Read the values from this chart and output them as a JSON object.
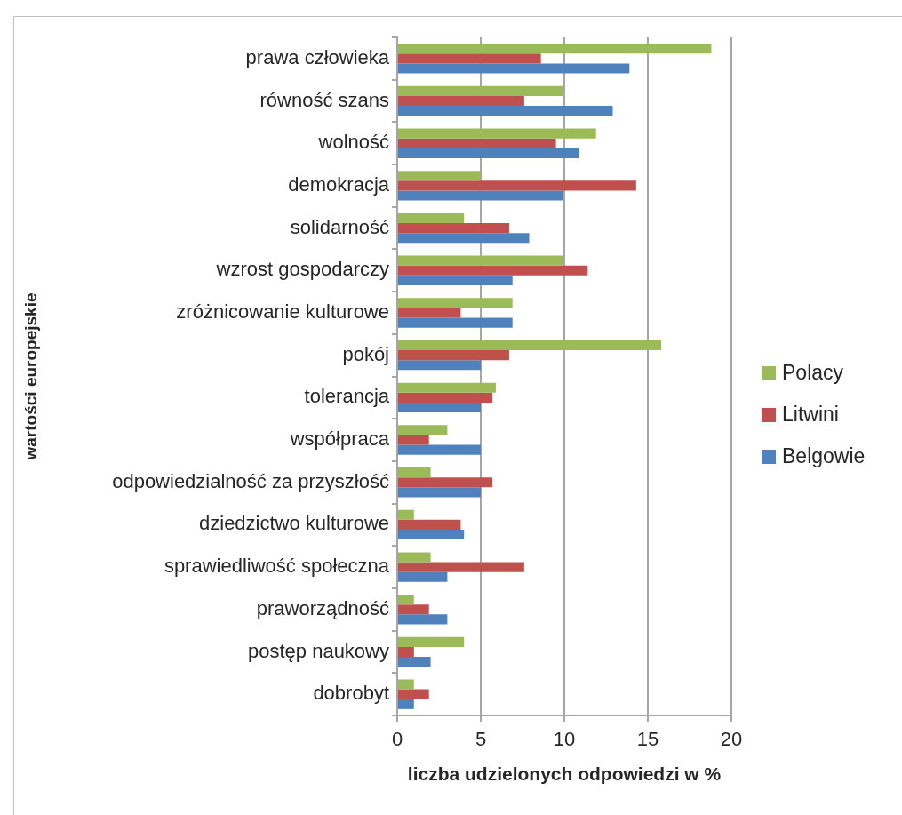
{
  "chart_data": {
    "type": "bar",
    "orientation": "horizontal",
    "categories": [
      "prawa człowieka",
      "równość szans",
      "wolność",
      "demokracja",
      "solidarność",
      "wzrost gospodarczy",
      "zróżnicowanie kulturowe",
      "pokój",
      "tolerancja",
      "współpraca",
      "odpowiedzialność za przyszłość",
      "dziedzictwo kulturowe",
      "sprawiedliwość społeczna",
      "praworządność",
      "postęp naukowy",
      "dobrobyt"
    ],
    "series": [
      {
        "name": "Polacy",
        "color": "#9bbb59",
        "values": [
          18.8,
          9.9,
          11.9,
          5,
          4,
          9.9,
          6.9,
          15.8,
          5.9,
          3,
          2,
          1,
          2,
          1,
          4,
          1
        ]
      },
      {
        "name": "Litwini",
        "color": "#c0504d",
        "values": [
          8.6,
          7.6,
          9.5,
          14.3,
          6.7,
          11.4,
          3.8,
          6.7,
          5.7,
          1.9,
          5.7,
          3.8,
          7.6,
          1.9,
          1,
          1.9
        ]
      },
      {
        "name": "Belgowie",
        "color": "#4f81bd",
        "values": [
          13.9,
          12.9,
          10.9,
          9.9,
          7.9,
          6.9,
          6.9,
          5,
          5,
          5,
          5,
          4,
          3,
          3,
          2,
          1
        ]
      }
    ],
    "xlabel": "liczba udzielonych odpowiedzi w %",
    "ylabel": "wartości europejskie",
    "xlim": [
      0,
      20
    ],
    "xticks": [
      0,
      5,
      10,
      15,
      20
    ],
    "grid": "x",
    "legend": "right"
  }
}
